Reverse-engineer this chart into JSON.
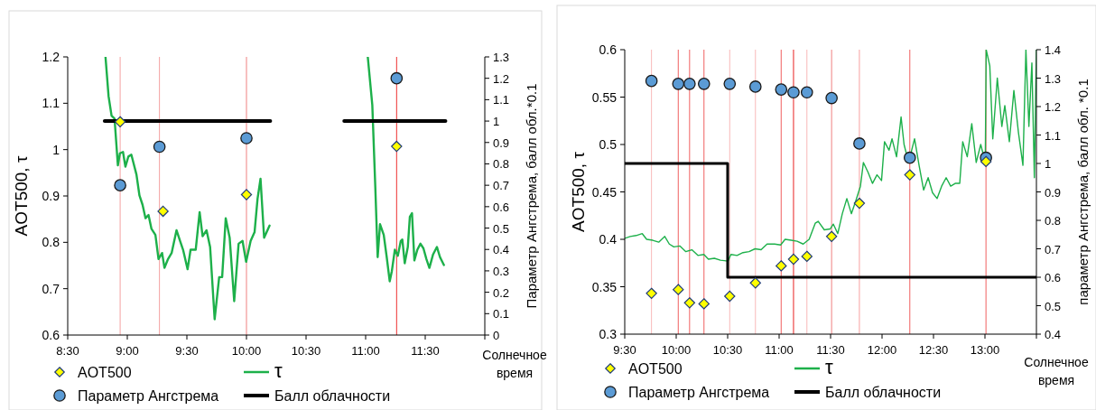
{
  "chart_data": [
    {
      "type": "line",
      "xlabel": "Солнечное время",
      "ylabel": "AOT500, τ",
      "y2label": "Параметр Ангстрема, балл обл.*0.1",
      "legend": "bottom",
      "xlim": [
        8.5,
        12
      ],
      "xticks": [
        {
          "value": 8.5,
          "label": "8:30"
        },
        {
          "value": 9,
          "label": "9:00"
        },
        {
          "value": 9.5,
          "label": "9:30"
        },
        {
          "value": 10,
          "label": "10:00"
        },
        {
          "value": 10.5,
          "label": "10:30"
        },
        {
          "value": 11,
          "label": "11:00"
        },
        {
          "value": 11.5,
          "label": "11:30"
        },
        {
          "value": 12,
          "label": null
        }
      ],
      "ylim": [
        0.6,
        1.2
      ],
      "yticks": [
        0.6,
        0.7,
        0.8,
        0.9,
        1,
        1.1,
        1.2
      ],
      "y2lim": [
        0,
        1.3
      ],
      "y2ticks": [
        0,
        0.1,
        0.2,
        0.3,
        0.4,
        0.5,
        0.6,
        0.7,
        0.8,
        0.9,
        1,
        1.1,
        1.2,
        1.3
      ],
      "ref_lines": [
        {
          "axis": "x",
          "value": 8.94,
          "color": "#f4a0a0"
        },
        {
          "axis": "x",
          "value": 9.27,
          "color": "#f4a0a0"
        },
        {
          "axis": "x",
          "value": 10.0,
          "color": "#f08080"
        },
        {
          "axis": "x",
          "value": 11.26,
          "color": "#ee3030"
        }
      ],
      "series": [
        {
          "name": "AOT500",
          "type": "scatter",
          "marker": "diamond",
          "color": "#ffff00",
          "x": [
            8.94,
            9.3,
            10.0,
            11.26
          ],
          "values": [
            1.06,
            0.867,
            0.903,
            1.007
          ]
        },
        {
          "name": "τ",
          "color": "#1db04a",
          "x": [
            8.817,
            8.843,
            8.868,
            8.893,
            8.921,
            8.938,
            8.964,
            8.984,
            9.009,
            9.034,
            9.077,
            9.102,
            9.128,
            9.153,
            9.178,
            9.203,
            9.236,
            9.262,
            9.292,
            9.312,
            9.342,
            9.372,
            9.413,
            9.443,
            9.468,
            9.506,
            9.531,
            9.574,
            9.607,
            9.632,
            9.665,
            9.695,
            9.733,
            9.771,
            9.796,
            9.826,
            9.859,
            9.897,
            9.934,
            9.967,
            9.997,
            10.035,
            10.068,
            10.093,
            10.118,
            10.148,
            10.194
          ],
          "values": [
            1.2,
            1.115,
            1.073,
            1.067,
            0.966,
            0.992,
            0.995,
            0.963,
            0.985,
            0.989,
            0.946,
            0.901,
            0.881,
            0.852,
            0.859,
            0.829,
            0.816,
            0.764,
            0.777,
            0.745,
            0.764,
            0.777,
            0.826,
            0.803,
            0.784,
            0.742,
            0.784,
            0.784,
            0.865,
            0.813,
            0.826,
            0.79,
            0.634,
            0.725,
            0.725,
            0.852,
            0.81,
            0.673,
            0.797,
            0.803,
            0.758,
            0.803,
            0.822,
            0.894,
            0.937,
            0.81,
            0.836
          ]
        },
        {
          "color": "#1db04a",
          "x": [
            11.018,
            11.056,
            11.081,
            11.101,
            11.121,
            11.152,
            11.177,
            11.202,
            11.22,
            11.245,
            11.27,
            11.295,
            11.308,
            11.328,
            11.354,
            11.371,
            11.389,
            11.409,
            11.434,
            11.46,
            11.485,
            11.51,
            11.535,
            11.566,
            11.598,
            11.624,
            11.657
          ],
          "values": [
            1.2,
            1.096,
            0.92,
            0.768,
            0.839,
            0.816,
            0.768,
            0.716,
            0.738,
            0.784,
            0.771,
            0.803,
            0.806,
            0.755,
            0.79,
            0.855,
            0.863,
            0.761,
            0.784,
            0.797,
            0.787,
            0.764,
            0.745,
            0.774,
            0.79,
            0.768,
            0.751
          ]
        },
        {
          "name": "Параметр Ангстрема",
          "type": "scatter",
          "marker": "circle",
          "axis": "y2",
          "color": "#5b9bd5",
          "x": [
            8.94,
            9.27,
            10.0,
            11.26
          ],
          "values": [
            0.7,
            0.88,
            0.92,
            1.2
          ]
        },
        {
          "name": "Балл облачности",
          "axis": "y2",
          "color": "#000000",
          "x": [
            8.81,
            10.2
          ],
          "values": [
            1,
            1
          ]
        },
        {
          "axis": "y2",
          "color": "#000000",
          "x": [
            10.82,
            11.67
          ],
          "values": [
            1,
            1
          ]
        }
      ]
    },
    {
      "type": "line",
      "xlabel": "Солнечное время",
      "ylabel": "AOT500, τ",
      "y2label": "параметр Ангстрема, балл обл. *0.1",
      "legend": "bottom",
      "xlim": [
        9.5,
        13.5
      ],
      "xticks": [
        {
          "value": 9.5,
          "label": "9:30"
        },
        {
          "value": 10,
          "label": "10:00"
        },
        {
          "value": 10.5,
          "label": "10:30"
        },
        {
          "value": 11,
          "label": "11:00"
        },
        {
          "value": 11.5,
          "label": "11:30"
        },
        {
          "value": 12,
          "label": "12:00"
        },
        {
          "value": 12.5,
          "label": "12:30"
        },
        {
          "value": 13,
          "label": "13:00"
        },
        {
          "value": 13.5,
          "label": null
        }
      ],
      "ylim": [
        0.3,
        0.6
      ],
      "yticks": [
        0.3,
        0.35,
        0.4,
        0.45,
        0.5,
        0.55,
        0.6
      ],
      "y2lim": [
        0.4,
        1.4
      ],
      "y2ticks": [
        0.4,
        0.5,
        0.6,
        0.7,
        0.8,
        0.9,
        1,
        1.1,
        1.2,
        1.3,
        1.4
      ],
      "ref_lines": [
        {
          "axis": "x",
          "value": 9.76,
          "color": "#f8b8b8"
        },
        {
          "axis": "x",
          "value": 10.02,
          "color": "#f06060"
        },
        {
          "axis": "x",
          "value": 10.13,
          "color": "#f06060"
        },
        {
          "axis": "x",
          "value": 10.27,
          "color": "#f06060"
        },
        {
          "axis": "x",
          "value": 10.52,
          "color": "#f8b8b8"
        },
        {
          "axis": "x",
          "value": 10.77,
          "color": "#f8b8b8"
        },
        {
          "axis": "x",
          "value": 11.02,
          "color": "#f06060"
        },
        {
          "axis": "x",
          "value": 11.14,
          "color": "#e82020"
        },
        {
          "axis": "x",
          "value": 11.27,
          "color": "#f8b8b8"
        },
        {
          "axis": "x",
          "value": 11.51,
          "color": "#f08080"
        },
        {
          "axis": "x",
          "value": 11.78,
          "color": "#f8a0a0"
        },
        {
          "axis": "x",
          "value": 12.27,
          "color": "#f06060"
        },
        {
          "axis": "x",
          "value": 13.01,
          "color": "#f06060"
        }
      ],
      "series": [
        {
          "name": "AOT500",
          "type": "scatter",
          "marker": "diamond",
          "color": "#ffff00",
          "x": [
            9.76,
            10.02,
            10.13,
            10.27,
            10.52,
            10.77,
            11.02,
            11.14,
            11.27,
            11.51,
            11.78,
            12.27,
            13.01
          ],
          "values": [
            0.343,
            0.347,
            0.333,
            0.332,
            0.34,
            0.354,
            0.372,
            0.379,
            0.382,
            0.403,
            0.438,
            0.468,
            0.482
          ]
        },
        {
          "name": "τ",
          "color": "#1db04a",
          "x": [
            9.5,
            9.553,
            9.611,
            9.67,
            9.713,
            9.772,
            9.83,
            9.889,
            9.933,
            9.977,
            10.035,
            10.094,
            10.152,
            10.211,
            10.269,
            10.313,
            10.371,
            10.43,
            10.503,
            10.532,
            10.591,
            10.649,
            10.708,
            10.766,
            10.825,
            10.883,
            10.956,
            11.015,
            11.058,
            11.117,
            11.175,
            11.234,
            11.292,
            11.351,
            11.38,
            11.439,
            11.497,
            11.527,
            11.57,
            11.614,
            11.658,
            11.702,
            11.746,
            11.79,
            11.819,
            11.863,
            11.907,
            11.951,
            11.995,
            12.024,
            12.068,
            12.097,
            12.141,
            12.185,
            12.214,
            12.258,
            12.316,
            12.36,
            12.404,
            12.448,
            12.491,
            12.535,
            12.579,
            12.623,
            12.667,
            12.711,
            12.755,
            12.784,
            12.828,
            12.872,
            12.915,
            12.959,
            13.003,
            13.012,
            13.047,
            13.076,
            13.12,
            13.164,
            13.193,
            13.237,
            13.281,
            13.325,
            13.369,
            13.398,
            13.427,
            13.456,
            13.48,
            13.5
          ],
          "values": [
            0.401,
            0.403,
            0.404,
            0.406,
            0.4,
            0.399,
            0.397,
            0.403,
            0.395,
            0.392,
            0.393,
            0.387,
            0.389,
            0.383,
            0.384,
            0.379,
            0.38,
            0.378,
            0.377,
            0.384,
            0.383,
            0.386,
            0.387,
            0.39,
            0.389,
            0.395,
            0.395,
            0.394,
            0.4,
            0.399,
            0.398,
            0.395,
            0.4,
            0.417,
            0.419,
            0.41,
            0.411,
            0.416,
            0.406,
            0.427,
            0.443,
            0.427,
            0.441,
            0.456,
            0.481,
            0.471,
            0.459,
            0.468,
            0.462,
            0.503,
            0.494,
            0.506,
            0.487,
            0.529,
            0.5,
            0.481,
            0.506,
            0.478,
            0.452,
            0.465,
            0.449,
            0.443,
            0.456,
            0.465,
            0.456,
            0.459,
            0.459,
            0.503,
            0.487,
            0.522,
            0.481,
            0.5,
            0.481,
            0.6,
            0.583,
            0.506,
            0.57,
            0.519,
            0.541,
            0.503,
            0.557,
            0.513,
            0.478,
            0.6,
            0.519,
            0.586,
            0.465,
            0.6
          ]
        },
        {
          "name": "Параметр Ангстрема",
          "type": "scatter",
          "marker": "circle",
          "axis": "y2",
          "color": "#5b9bd5",
          "x": [
            9.76,
            10.02,
            10.13,
            10.27,
            10.52,
            10.77,
            11.02,
            11.14,
            11.27,
            11.51,
            11.78,
            12.27,
            13.01
          ],
          "values": [
            1.29,
            1.28,
            1.28,
            1.28,
            1.28,
            1.27,
            1.26,
            1.25,
            1.25,
            1.23,
            1.07,
            1.02,
            1.02
          ]
        },
        {
          "name": "Балл облачности",
          "axis": "y2",
          "color": "#000000",
          "x": [
            9.5,
            10.5,
            10.5,
            13.5
          ],
          "values": [
            1,
            1,
            0.6,
            0.6
          ]
        }
      ]
    }
  ]
}
